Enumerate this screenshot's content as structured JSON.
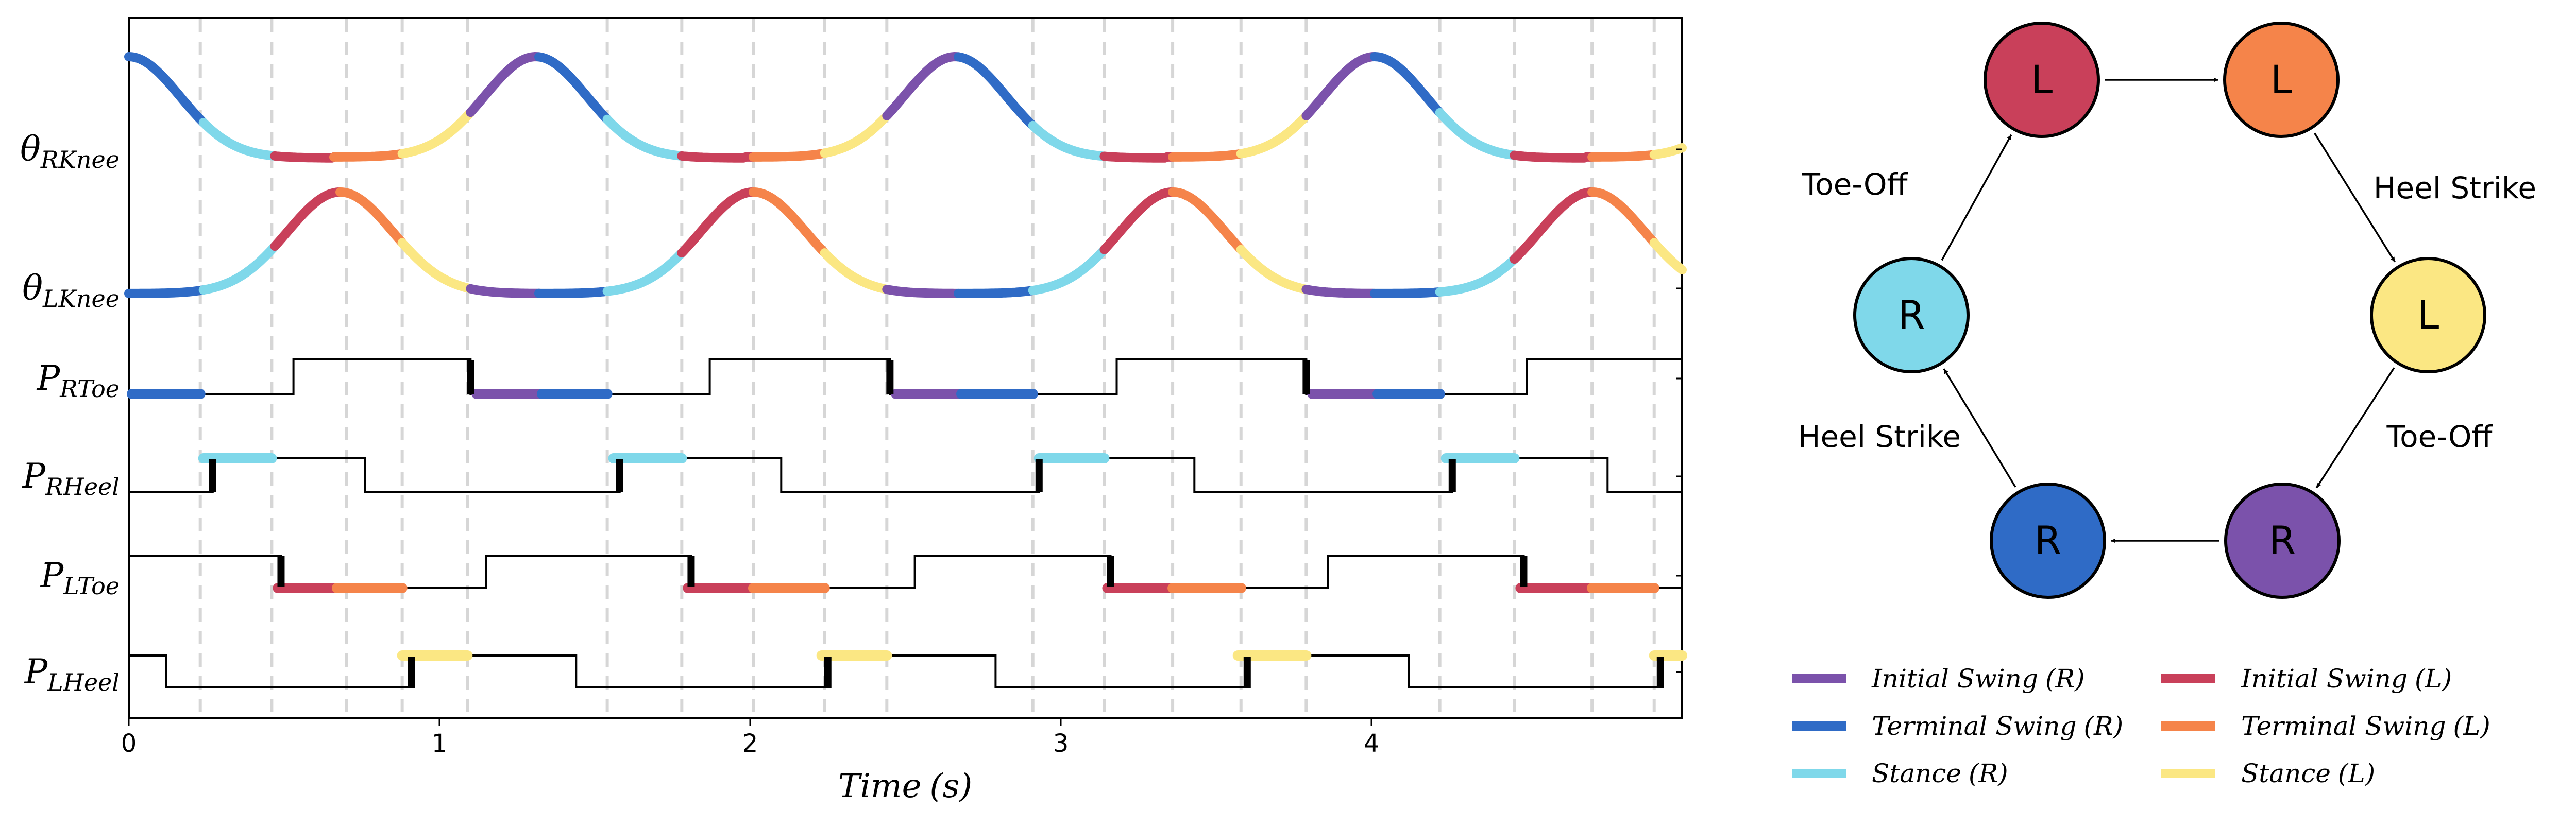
{
  "colors": {
    "initial_swing_r": "#7b52ab",
    "terminal_swing_r": "#2f6bc6",
    "stance_r": "#7fd8ea",
    "initial_swing_l": "#c9405a",
    "terminal_swing_l": "#f5844a",
    "stance_l": "#fbe783"
  },
  "plot": {
    "xlabel_main": "Time",
    "xlabel_unit": "(s)",
    "x_range": [
      0,
      5
    ],
    "x_ticks": [
      "0",
      "1",
      "2",
      "3",
      "4"
    ],
    "phase_boundaries": [
      0.23,
      0.46,
      0.7,
      0.88,
      1.09,
      1.54,
      1.78,
      2.01,
      2.24,
      2.44,
      2.91,
      3.14,
      3.36,
      3.58,
      3.79,
      4.22,
      4.46,
      4.71,
      4.91
    ],
    "rows": [
      {
        "main": "θ",
        "sub": "RKnee"
      },
      {
        "main": "θ",
        "sub": "LKnee"
      },
      {
        "main": "P",
        "sub": "RToe"
      },
      {
        "main": "P",
        "sub": "RHeel"
      },
      {
        "main": "P",
        "sub": "LToe"
      },
      {
        "main": "P",
        "sub": "LHeel"
      }
    ]
  },
  "state_machine": {
    "nodes": [
      {
        "label": "L",
        "phase": "initial_swing_l"
      },
      {
        "label": "L",
        "phase": "terminal_swing_l"
      },
      {
        "label": "L",
        "phase": "stance_l"
      },
      {
        "label": "R",
        "phase": "initial_swing_r"
      },
      {
        "label": "R",
        "phase": "terminal_swing_r"
      },
      {
        "label": "R",
        "phase": "stance_r"
      }
    ],
    "edge_labels": {
      "heel_strike_right": "Heel Strike",
      "toe_off_right": "Toe-Off",
      "heel_strike_left": "Heel Strike",
      "toe_off_left": "Toe-Off"
    }
  },
  "legend": [
    {
      "name": "Initial Swing",
      "side": "(R)",
      "color_key": "initial_swing_r"
    },
    {
      "name": "Initial Swing",
      "side": "(L)",
      "color_key": "initial_swing_l"
    },
    {
      "name": "Terminal Swing",
      "side": "(R)",
      "color_key": "terminal_swing_r"
    },
    {
      "name": "Terminal Swing",
      "side": "(L)",
      "color_key": "terminal_swing_l"
    },
    {
      "name": "Stance",
      "side": "(R)",
      "color_key": "stance_r"
    },
    {
      "name": "Stance",
      "side": "(L)",
      "color_key": "stance_l"
    }
  ]
}
